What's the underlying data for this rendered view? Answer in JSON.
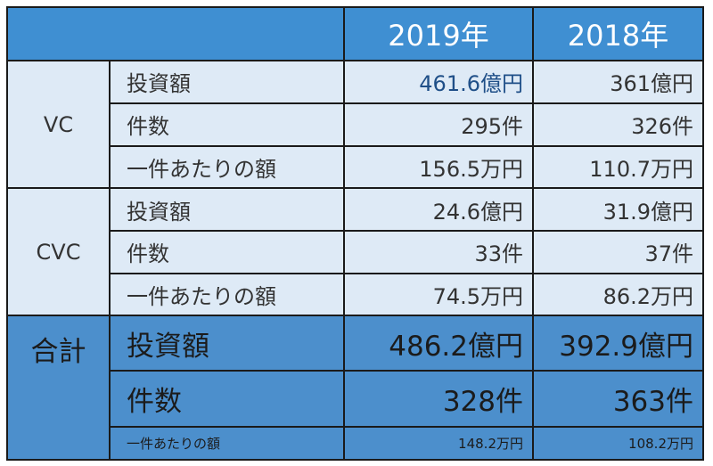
{
  "header": {
    "year1": "2019年",
    "year2": "2018年"
  },
  "vc": {
    "group": "VC",
    "rows": [
      {
        "label": "投資額",
        "y2019": "461.6億円",
        "y2018": "361億円"
      },
      {
        "label": "件数",
        "y2019": "295件",
        "y2018": "326件"
      },
      {
        "label": "一件あたりの額",
        "y2019": "156.5万円",
        "y2018": "110.7万円"
      }
    ]
  },
  "cvc": {
    "group": "CVC",
    "rows": [
      {
        "label": "投資額",
        "y2019": "24.6億円",
        "y2018": "31.9億円"
      },
      {
        "label": "件数",
        "y2019": "33件",
        "y2018": "37件"
      },
      {
        "label": "一件あたりの額",
        "y2019": "74.5万円",
        "y2018": "86.2万円"
      }
    ]
  },
  "total": {
    "group": "合計",
    "rows": [
      {
        "label": "投資額",
        "y2019": "486.2億円",
        "y2018": "392.9億円"
      },
      {
        "label": "件数",
        "y2019": "328件",
        "y2018": "363件"
      },
      {
        "label": "一件あたりの額",
        "y2019": "148.2万円",
        "y2018": "108.2万円"
      }
    ]
  },
  "colors": {
    "header": "#3f8fd2",
    "light_row": "#deeaf6",
    "total_row": "#4c8fcc",
    "accent_value": "#1f4f88"
  }
}
